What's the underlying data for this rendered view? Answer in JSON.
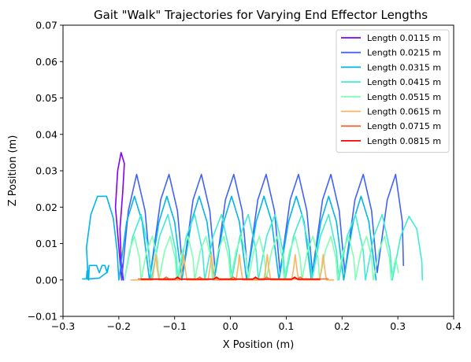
{
  "chart_data": {
    "type": "line",
    "title": "Gait \"Walk\" Trajectories for Varying End Effector Lengths",
    "xlabel": "X Position (m)",
    "ylabel": "Z Position (m)",
    "xlim": [
      -0.3,
      0.4
    ],
    "ylim": [
      -0.01,
      0.07
    ],
    "xticks": [
      -0.3,
      -0.2,
      -0.1,
      0.0,
      0.1,
      0.2,
      0.3,
      0.4
    ],
    "yticks": [
      -0.01,
      0.0,
      0.01,
      0.02,
      0.03,
      0.04,
      0.05,
      0.06,
      0.07
    ],
    "xtick_labels": [
      "−0.3",
      "−0.2",
      "−0.1",
      "0.0",
      "0.1",
      "0.2",
      "0.3",
      "0.4"
    ],
    "ytick_labels": [
      "−0.01",
      "0.00",
      "0.01",
      "0.02",
      "0.03",
      "0.04",
      "0.05",
      "0.06",
      "0.07"
    ],
    "grid": false,
    "legend_position": "top-right",
    "series": [
      {
        "name": "Length 0.0115 m",
        "color": "#8000ff",
        "points": [
          [
            -0.195,
            0.0
          ],
          [
            -0.2,
            0.009
          ],
          [
            -0.206,
            0.02
          ],
          [
            -0.202,
            0.03
          ],
          [
            -0.196,
            0.035
          ],
          [
            -0.19,
            0.032
          ],
          [
            -0.193,
            0.024
          ],
          [
            -0.198,
            0.014
          ],
          [
            -0.196,
            0.006
          ],
          [
            -0.192,
            0.0
          ]
        ]
      },
      {
        "name": "Length 0.0215 m",
        "color": "#4062fa",
        "points": [
          [
            -0.195,
            0.0
          ],
          [
            -0.183,
            0.019
          ],
          [
            -0.168,
            0.029
          ],
          [
            -0.153,
            0.019
          ],
          [
            -0.143,
            0.002
          ],
          [
            -0.125,
            0.022
          ],
          [
            -0.11,
            0.029
          ],
          [
            -0.095,
            0.019
          ],
          [
            -0.085,
            0.002
          ],
          [
            -0.067,
            0.022
          ],
          [
            -0.052,
            0.029
          ],
          [
            -0.037,
            0.019
          ],
          [
            -0.027,
            0.002
          ],
          [
            -0.009,
            0.022
          ],
          [
            0.006,
            0.029
          ],
          [
            0.021,
            0.019
          ],
          [
            0.031,
            0.002
          ],
          [
            0.049,
            0.022
          ],
          [
            0.064,
            0.029
          ],
          [
            0.079,
            0.019
          ],
          [
            0.089,
            0.002
          ],
          [
            0.107,
            0.022
          ],
          [
            0.122,
            0.029
          ],
          [
            0.137,
            0.019
          ],
          [
            0.147,
            0.002
          ],
          [
            0.165,
            0.022
          ],
          [
            0.18,
            0.029
          ],
          [
            0.195,
            0.019
          ],
          [
            0.205,
            0.002
          ],
          [
            0.223,
            0.022
          ],
          [
            0.238,
            0.029
          ],
          [
            0.253,
            0.019
          ],
          [
            0.263,
            0.002
          ],
          [
            0.281,
            0.022
          ],
          [
            0.296,
            0.029
          ],
          [
            0.308,
            0.016
          ],
          [
            0.31,
            0.004
          ]
        ]
      },
      {
        "name": "Length 0.0315 m",
        "color": "#00b5eb",
        "points": [
          [
            -0.265,
            0.0003
          ],
          [
            -0.258,
            0.0003
          ],
          [
            -0.257,
            0.0025
          ],
          [
            -0.256,
            0.0003
          ],
          [
            -0.254,
            0.0
          ],
          [
            -0.253,
            0.004
          ],
          [
            -0.24,
            0.004
          ],
          [
            -0.235,
            0.002
          ],
          [
            -0.23,
            0.004
          ],
          [
            -0.225,
            0.004
          ],
          [
            -0.221,
            0.002
          ],
          [
            -0.218,
            0.004
          ],
          [
            -0.222,
            0.002
          ],
          [
            -0.235,
            0.0005
          ],
          [
            -0.255,
            0.0003
          ],
          [
            -0.258,
            0.009
          ],
          [
            -0.25,
            0.018
          ],
          [
            -0.238,
            0.023
          ],
          [
            -0.222,
            0.023
          ],
          [
            -0.21,
            0.017
          ],
          [
            -0.203,
            0.008
          ],
          [
            -0.2,
            0.0
          ],
          [
            -0.186,
            0.016
          ],
          [
            -0.172,
            0.023
          ],
          [
            -0.158,
            0.016
          ],
          [
            -0.145,
            0.0
          ],
          [
            -0.128,
            0.016
          ],
          [
            -0.114,
            0.023
          ],
          [
            -0.1,
            0.016
          ],
          [
            -0.087,
            0.0
          ],
          [
            -0.07,
            0.016
          ],
          [
            -0.056,
            0.023
          ],
          [
            -0.042,
            0.016
          ],
          [
            -0.029,
            0.0
          ],
          [
            -0.012,
            0.016
          ],
          [
            0.002,
            0.023
          ],
          [
            0.016,
            0.016
          ],
          [
            0.029,
            0.0
          ],
          [
            0.046,
            0.016
          ],
          [
            0.06,
            0.023
          ],
          [
            0.074,
            0.016
          ],
          [
            0.087,
            0.0
          ],
          [
            0.104,
            0.016
          ],
          [
            0.118,
            0.023
          ],
          [
            0.132,
            0.016
          ],
          [
            0.145,
            0.0
          ],
          [
            0.162,
            0.016
          ],
          [
            0.176,
            0.023
          ],
          [
            0.19,
            0.016
          ],
          [
            0.203,
            0.0
          ],
          [
            0.22,
            0.016
          ],
          [
            0.234,
            0.023
          ],
          [
            0.248,
            0.016
          ],
          [
            0.261,
            0.0
          ]
        ]
      },
      {
        "name": "Length 0.0415 m",
        "color": "#40ecd4",
        "points": [
          [
            -0.19,
            0.0
          ],
          [
            -0.175,
            0.012
          ],
          [
            -0.16,
            0.018
          ],
          [
            -0.146,
            0.008
          ],
          [
            -0.142,
            0.0
          ],
          [
            -0.127,
            0.012
          ],
          [
            -0.112,
            0.018
          ],
          [
            -0.098,
            0.008
          ],
          [
            -0.094,
            0.0
          ],
          [
            -0.079,
            0.012
          ],
          [
            -0.064,
            0.018
          ],
          [
            -0.05,
            0.008
          ],
          [
            -0.046,
            0.0
          ],
          [
            -0.031,
            0.012
          ],
          [
            -0.016,
            0.018
          ],
          [
            -0.002,
            0.008
          ],
          [
            0.002,
            0.0
          ],
          [
            0.017,
            0.012
          ],
          [
            0.032,
            0.018
          ],
          [
            0.046,
            0.008
          ],
          [
            0.05,
            0.0
          ],
          [
            0.065,
            0.012
          ],
          [
            0.08,
            0.018
          ],
          [
            0.094,
            0.008
          ],
          [
            0.098,
            0.0
          ],
          [
            0.113,
            0.012
          ],
          [
            0.128,
            0.018
          ],
          [
            0.142,
            0.008
          ],
          [
            0.146,
            0.0
          ],
          [
            0.161,
            0.012
          ],
          [
            0.176,
            0.018
          ],
          [
            0.19,
            0.008
          ],
          [
            0.194,
            0.0
          ],
          [
            0.209,
            0.012
          ],
          [
            0.224,
            0.018
          ],
          [
            0.238,
            0.008
          ],
          [
            0.242,
            0.0
          ],
          [
            0.257,
            0.012
          ],
          [
            0.272,
            0.018
          ],
          [
            0.286,
            0.008
          ],
          [
            0.29,
            0.0
          ],
          [
            0.305,
            0.012
          ],
          [
            0.32,
            0.0175
          ],
          [
            0.334,
            0.014
          ],
          [
            0.343,
            0.005
          ],
          [
            0.344,
            0.0
          ]
        ]
      },
      {
        "name": "Length 0.0515 m",
        "color": "#80ffb4",
        "points": [
          [
            -0.19,
            0.0
          ],
          [
            -0.181,
            0.008
          ],
          [
            -0.172,
            0.012
          ],
          [
            -0.163,
            0.006
          ],
          [
            -0.16,
            0.0
          ],
          [
            -0.15,
            0.008
          ],
          [
            -0.14,
            0.012
          ],
          [
            -0.131,
            0.006
          ],
          [
            -0.128,
            0.0
          ],
          [
            -0.118,
            0.008
          ],
          [
            -0.108,
            0.012
          ],
          [
            -0.099,
            0.006
          ],
          [
            -0.096,
            0.0
          ],
          [
            -0.086,
            0.008
          ],
          [
            -0.076,
            0.012
          ],
          [
            -0.067,
            0.006
          ],
          [
            -0.064,
            0.0
          ],
          [
            -0.054,
            0.008
          ],
          [
            -0.044,
            0.012
          ],
          [
            -0.035,
            0.006
          ],
          [
            -0.032,
            0.0
          ],
          [
            -0.022,
            0.008
          ],
          [
            -0.012,
            0.012
          ],
          [
            -0.003,
            0.006
          ],
          [
            0.0,
            0.0
          ],
          [
            0.01,
            0.008
          ],
          [
            0.02,
            0.012
          ],
          [
            0.029,
            0.006
          ],
          [
            0.032,
            0.0
          ],
          [
            0.042,
            0.008
          ],
          [
            0.052,
            0.012
          ],
          [
            0.061,
            0.006
          ],
          [
            0.064,
            0.0
          ],
          [
            0.074,
            0.008
          ],
          [
            0.084,
            0.012
          ],
          [
            0.093,
            0.006
          ],
          [
            0.096,
            0.0
          ],
          [
            0.106,
            0.008
          ],
          [
            0.116,
            0.012
          ],
          [
            0.125,
            0.006
          ],
          [
            0.128,
            0.0
          ],
          [
            0.138,
            0.008
          ],
          [
            0.148,
            0.012
          ],
          [
            0.157,
            0.006
          ],
          [
            0.16,
            0.0
          ],
          [
            0.17,
            0.008
          ],
          [
            0.18,
            0.012
          ],
          [
            0.189,
            0.006
          ],
          [
            0.192,
            0.0
          ],
          [
            0.202,
            0.008
          ],
          [
            0.212,
            0.012
          ],
          [
            0.221,
            0.006
          ],
          [
            0.224,
            0.0
          ],
          [
            0.234,
            0.008
          ],
          [
            0.244,
            0.012
          ],
          [
            0.253,
            0.006
          ],
          [
            0.256,
            0.0
          ],
          [
            0.266,
            0.008
          ],
          [
            0.276,
            0.012
          ],
          [
            0.285,
            0.006
          ],
          [
            0.288,
            0.0
          ],
          [
            0.296,
            0.006
          ],
          [
            0.301,
            0.002
          ]
        ]
      },
      {
        "name": "Length 0.0615 m",
        "color": "#ffb360",
        "points": [
          [
            -0.178,
            0.0
          ],
          [
            -0.14,
            0.0
          ],
          [
            -0.136,
            0.004
          ],
          [
            -0.134,
            0.007
          ],
          [
            -0.131,
            0.003
          ],
          [
            -0.128,
            0.0
          ],
          [
            -0.09,
            0.0
          ],
          [
            -0.086,
            0.004
          ],
          [
            -0.084,
            0.007
          ],
          [
            -0.081,
            0.003
          ],
          [
            -0.078,
            0.0
          ],
          [
            -0.04,
            0.0
          ],
          [
            -0.036,
            0.004
          ],
          [
            -0.034,
            0.007
          ],
          [
            -0.031,
            0.003
          ],
          [
            -0.028,
            0.0
          ],
          [
            0.01,
            0.0
          ],
          [
            0.014,
            0.004
          ],
          [
            0.016,
            0.007
          ],
          [
            0.019,
            0.003
          ],
          [
            0.022,
            0.0
          ],
          [
            0.06,
            0.0
          ],
          [
            0.064,
            0.004
          ],
          [
            0.066,
            0.007
          ],
          [
            0.069,
            0.003
          ],
          [
            0.072,
            0.0
          ],
          [
            0.11,
            0.0
          ],
          [
            0.114,
            0.004
          ],
          [
            0.116,
            0.007
          ],
          [
            0.119,
            0.003
          ],
          [
            0.122,
            0.0
          ],
          [
            0.16,
            0.0
          ],
          [
            0.164,
            0.004
          ],
          [
            0.166,
            0.007
          ],
          [
            0.169,
            0.003
          ],
          [
            0.172,
            0.0
          ],
          [
            0.185,
            0.0
          ]
        ]
      },
      {
        "name": "Length 0.0715 m",
        "color": "#ff6c38",
        "points": [
          [
            -0.165,
            0.0003
          ],
          [
            -0.12,
            0.0003
          ],
          [
            -0.115,
            0.0008
          ],
          [
            -0.11,
            0.0003
          ],
          [
            -0.06,
            0.0003
          ],
          [
            -0.055,
            0.0008
          ],
          [
            -0.05,
            0.0003
          ],
          [
            0.0,
            0.0003
          ],
          [
            0.005,
            0.0008
          ],
          [
            0.01,
            0.0003
          ],
          [
            0.06,
            0.0003
          ],
          [
            0.065,
            0.0008
          ],
          [
            0.07,
            0.0003
          ],
          [
            0.12,
            0.0003
          ],
          [
            0.125,
            0.0008
          ],
          [
            0.13,
            0.0003
          ],
          [
            0.175,
            0.0003
          ]
        ]
      },
      {
        "name": "Length 0.0815 m",
        "color": "#ff0000",
        "points": [
          [
            -0.16,
            0.0002
          ],
          [
            -0.1,
            0.0002
          ],
          [
            -0.095,
            0.0008
          ],
          [
            -0.09,
            0.0002
          ],
          [
            -0.03,
            0.0002
          ],
          [
            -0.025,
            0.0008
          ],
          [
            -0.02,
            0.0002
          ],
          [
            0.04,
            0.0002
          ],
          [
            0.045,
            0.0008
          ],
          [
            0.05,
            0.0002
          ],
          [
            0.11,
            0.0002
          ],
          [
            0.115,
            0.0008
          ],
          [
            0.12,
            0.0002
          ],
          [
            0.16,
            0.0002
          ]
        ]
      }
    ]
  }
}
